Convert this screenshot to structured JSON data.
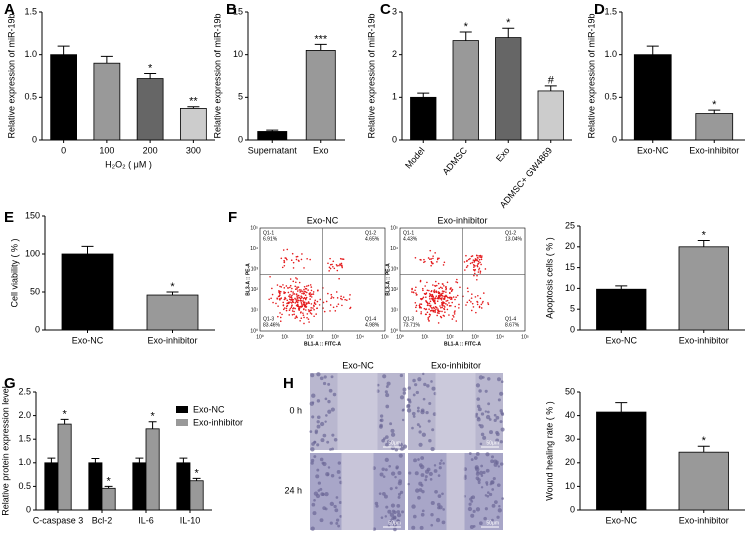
{
  "chart_data": [
    {
      "type": "bar",
      "label": "A",
      "ylabel": "Relative expression of miR-19b",
      "xlabel": "H₂O₂ ( μM )",
      "categories": [
        "0",
        "100",
        "200",
        "300"
      ],
      "values": [
        1.0,
        0.9,
        0.72,
        0.37
      ],
      "errors": [
        0.1,
        0.08,
        0.06,
        0.02
      ],
      "colors": [
        "#000000",
        "#999999",
        "#666666",
        "#cccccc"
      ],
      "significance": [
        null,
        null,
        "*",
        "**"
      ],
      "ylim": [
        0,
        1.5
      ],
      "yticks": [
        0,
        0.5,
        {
          "value": 1,
          "label": "1.0"
        },
        1.5
      ]
    },
    {
      "type": "bar",
      "label": "B",
      "ylabel": "Relative expression of miR-19b",
      "categories": [
        "Supernatant",
        "Exo"
      ],
      "values": [
        1.0,
        10.5
      ],
      "errors": [
        0.15,
        0.7
      ],
      "colors": [
        "#000000",
        "#999999"
      ],
      "significance": [
        null,
        "***"
      ],
      "ylim": [
        0,
        15
      ],
      "yticks": [
        0,
        5,
        10,
        15
      ]
    },
    {
      "type": "bar",
      "label": "C",
      "ylabel": "Relative expression of miR-19b",
      "categories": [
        "Model",
        "ADMSC",
        "Exo",
        "ADMSC+ GW4869"
      ],
      "values": [
        1.0,
        2.33,
        2.4,
        1.15
      ],
      "errors": [
        0.1,
        0.2,
        0.22,
        0.12
      ],
      "colors": [
        "#000000",
        "#999999",
        "#666666",
        "#cccccc"
      ],
      "significance": [
        null,
        "*",
        "*",
        "#"
      ],
      "ylim": [
        0,
        3
      ],
      "yticks": [
        0,
        1,
        2,
        3
      ]
    },
    {
      "type": "bar",
      "label": "D",
      "ylabel": "Relative expression of miR-19b",
      "categories": [
        "Exo-NC",
        "Exo-inhibitor"
      ],
      "values": [
        1.0,
        0.31
      ],
      "errors": [
        0.1,
        0.04
      ],
      "colors": [
        "#000000",
        "#999999"
      ],
      "significance": [
        null,
        "*"
      ],
      "ylim": [
        0,
        1.5
      ],
      "yticks": [
        0,
        0.5,
        {
          "value": 1,
          "label": "1.0"
        },
        1.5
      ]
    },
    {
      "type": "bar",
      "label": "E",
      "ylabel": "Cell viability ( % )",
      "categories": [
        "Exo-NC",
        "Exo-inhibitor"
      ],
      "values": [
        100,
        46
      ],
      "errors": [
        10,
        4
      ],
      "colors": [
        "#000000",
        "#999999"
      ],
      "significance": [
        null,
        "*"
      ],
      "ylim": [
        0,
        150
      ],
      "yticks": [
        0,
        50,
        100,
        150
      ]
    },
    {
      "type": "bar",
      "label": "F",
      "ylabel": "Apoptosis cells ( % )",
      "categories": [
        "Exo-NC",
        "Exo-inhibitor"
      ],
      "values": [
        9.8,
        20
      ],
      "errors": [
        0.8,
        1.5
      ],
      "colors": [
        "#000000",
        "#999999"
      ],
      "significance": [
        null,
        "*"
      ],
      "ylim": [
        0,
        25
      ],
      "yticks": [
        0,
        5,
        10,
        15,
        20,
        25
      ]
    },
    {
      "type": "bar",
      "label": "G",
      "ylabel": "Relative protein expression level",
      "categories": [
        "C-caspase 3",
        "Bcl-2",
        "IL-6",
        "IL-10"
      ],
      "series": [
        {
          "name": "Exo-NC",
          "color": "#000000",
          "values": [
            1.0,
            1.0,
            1.0,
            1.0
          ],
          "errors": [
            0.1,
            0.09,
            0.1,
            0.1
          ],
          "significance": [
            null,
            null,
            null,
            null
          ]
        },
        {
          "name": "Exo-inhibitor",
          "color": "#999999",
          "values": [
            1.82,
            0.46,
            1.72,
            0.62
          ],
          "errors": [
            0.1,
            0.04,
            0.15,
            0.05
          ],
          "significance": [
            "*",
            "*",
            "*",
            "*"
          ]
        }
      ],
      "ylim": [
        0,
        2.5
      ],
      "yticks": [
        0,
        0.5,
        {
          "value": 1,
          "label": "1.0"
        },
        1.5,
        {
          "value": 2,
          "label": "2.0"
        },
        2.5
      ]
    },
    {
      "type": "bar",
      "label": "H",
      "ylabel": "Wound healing rate ( % )",
      "categories": [
        "Exo-NC",
        "Exo-inhibitor"
      ],
      "values": [
        41.5,
        24.5
      ],
      "errors": [
        4,
        2.5
      ],
      "colors": [
        "#000000",
        "#999999"
      ],
      "significance": [
        null,
        "*"
      ],
      "ylim": [
        0,
        50
      ],
      "yticks": [
        0,
        10,
        20,
        30,
        40,
        50
      ]
    }
  ],
  "flow_cytometry": {
    "xlabel": "BL1-A :: FITC-A",
    "ylabel": "BL3-A :: PE-A",
    "ticks": [
      "10⁰",
      "10¹",
      "10²",
      "10³",
      "10⁴",
      "10⁵"
    ],
    "plots": [
      {
        "title": "Exo-NC",
        "quadrants": [
          {
            "name": "Q1-1",
            "value": "6.91%"
          },
          {
            "name": "Q1-2",
            "value": "4.65%"
          },
          {
            "name": "Q1-3",
            "value": "83.46%"
          },
          {
            "name": "Q1-4",
            "value": "4.98%"
          }
        ]
      },
      {
        "title": "Exo-inhibitor",
        "quadrants": [
          {
            "name": "Q1-1",
            "value": "4.43%"
          },
          {
            "name": "Q1-2",
            "value": "13.04%"
          },
          {
            "name": "Q1-3",
            "value": "73.71%"
          },
          {
            "name": "Q1-4",
            "value": "8.67%"
          }
        ]
      }
    ]
  },
  "wound_healing": {
    "columns": [
      "Exo-NC",
      "Exo-inhibitor"
    ],
    "rows": [
      "0 h",
      "24 h"
    ],
    "scale_bar": "50μm"
  }
}
